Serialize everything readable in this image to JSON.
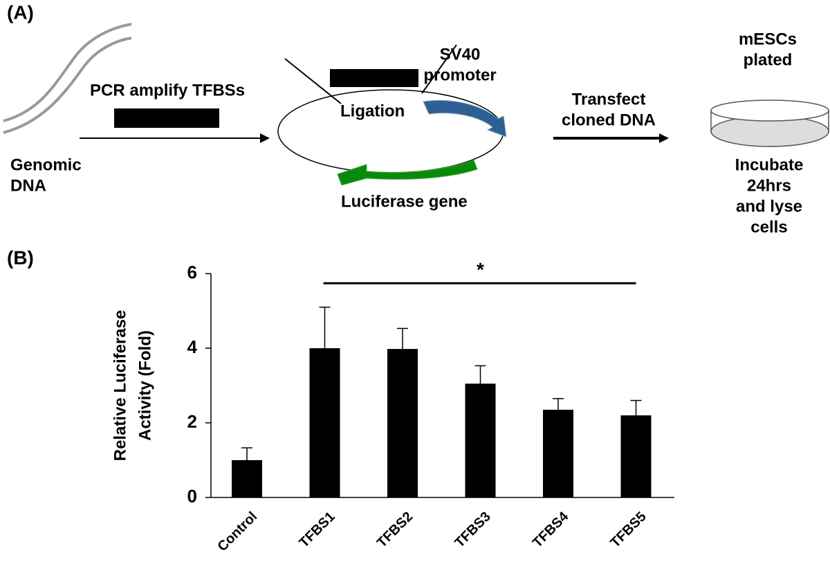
{
  "diagram": {
    "panel_a": "(A)",
    "genomic_dna": [
      "Genomic",
      "DNA"
    ],
    "pcr": "PCR amplify TFBSs",
    "ligation": "Ligation",
    "sv40": [
      "SV40",
      "promoter"
    ],
    "luciferase": "Luciferase gene",
    "transfect": [
      "Transfect",
      "cloned DNA"
    ],
    "mescs": [
      "mESCs",
      "plated"
    ],
    "incubate": [
      "Incubate",
      "24hrs",
      "and lyse",
      "cells"
    ],
    "panel_b": "(B)"
  },
  "chart_data": {
    "type": "bar",
    "y_label": [
      "Relative Luciferase",
      "Activity (Fold)"
    ],
    "categories": [
      "Control",
      "TFBS1",
      "TFBS2",
      "TFBS3",
      "TFBS4",
      "TFBS5"
    ],
    "values": [
      1.0,
      4.0,
      3.98,
      3.05,
      2.35,
      2.2
    ],
    "errors": [
      0.33,
      1.1,
      0.55,
      0.48,
      0.3,
      0.4
    ],
    "color": "#000000",
    "ylim": [
      0,
      6
    ],
    "yticks": [
      0,
      2,
      4,
      6
    ],
    "annotation": "*"
  }
}
